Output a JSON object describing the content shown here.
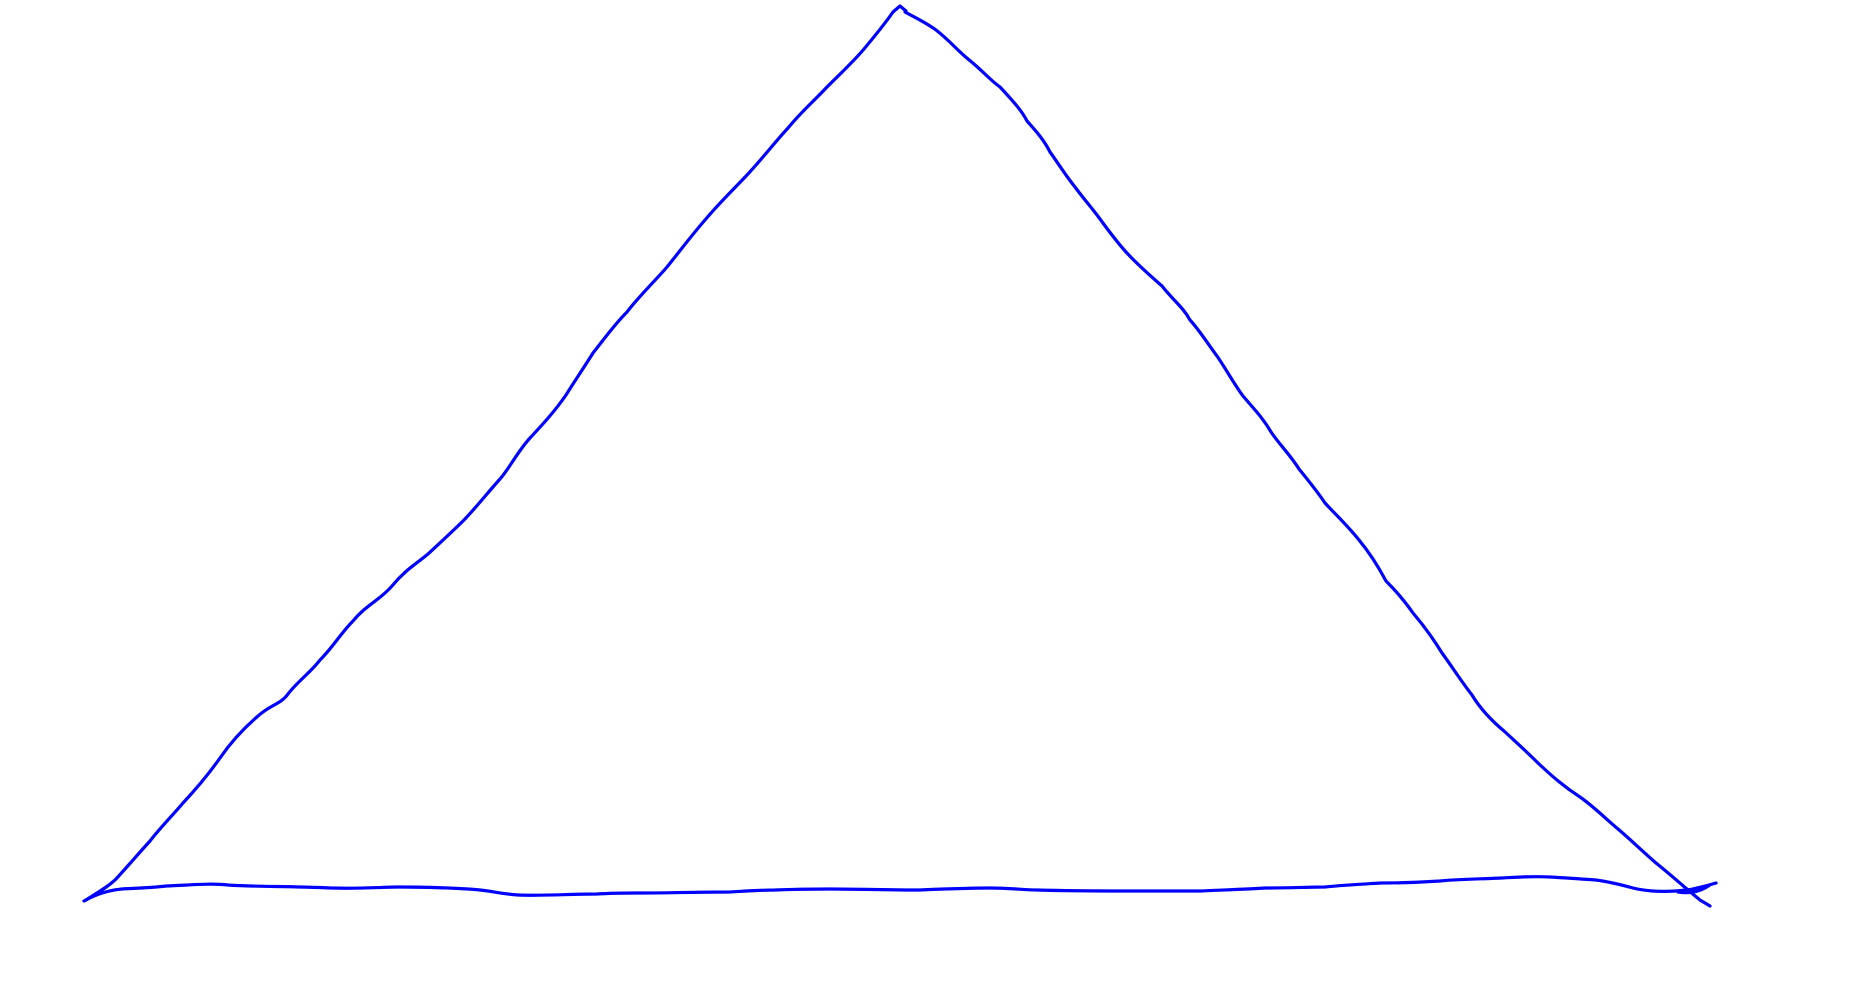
{
  "drawing": {
    "background_color": "#ffffff",
    "stroke_color": "#0000ff",
    "shape": "triangle"
  }
}
